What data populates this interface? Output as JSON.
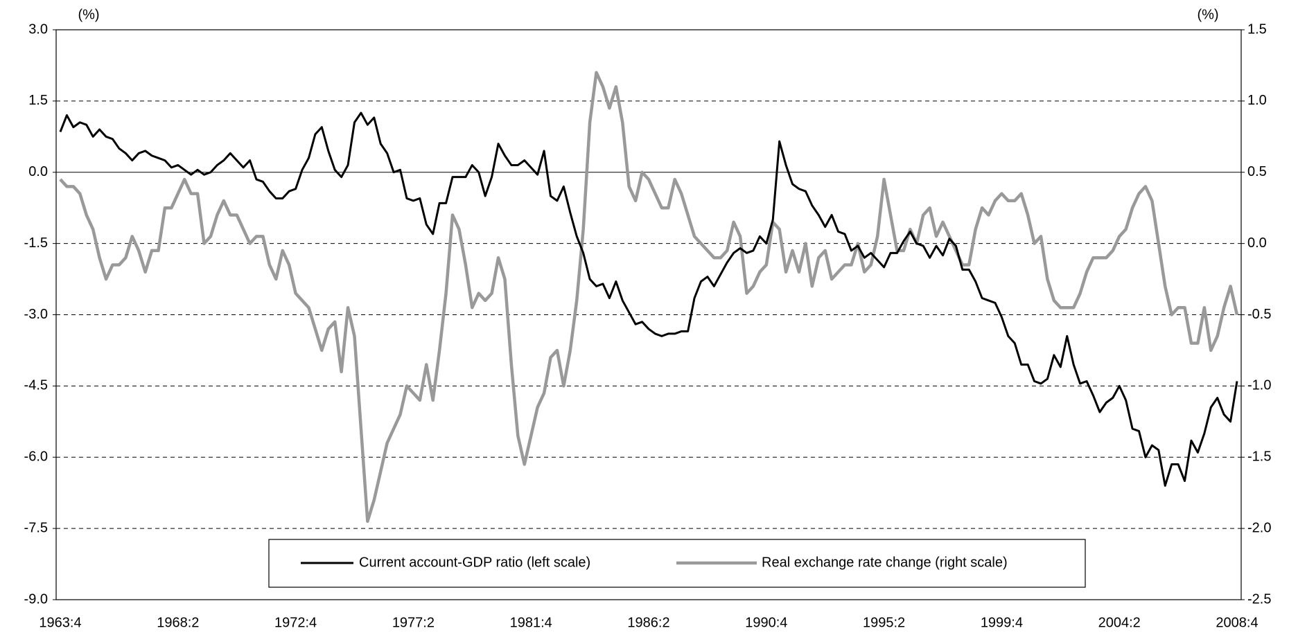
{
  "chart_data": {
    "type": "line",
    "y_label": "(%)",
    "y2_label": "(%)",
    "categories": [
      "1963:4",
      null,
      null,
      null,
      null,
      null,
      null,
      null,
      null,
      null,
      null,
      null,
      null,
      null,
      null,
      null,
      null,
      null,
      "1968:2",
      null,
      null,
      null,
      null,
      null,
      null,
      null,
      null,
      null,
      null,
      null,
      null,
      null,
      null,
      null,
      null,
      null,
      "1972:4",
      null,
      null,
      null,
      null,
      null,
      null,
      null,
      null,
      null,
      null,
      null,
      null,
      null,
      null,
      null,
      null,
      null,
      "1977:2",
      null,
      null,
      null,
      null,
      null,
      null,
      null,
      null,
      null,
      null,
      null,
      null,
      null,
      null,
      null,
      null,
      null,
      "1981:4",
      null,
      null,
      null,
      null,
      null,
      null,
      null,
      null,
      null,
      null,
      null,
      null,
      null,
      null,
      null,
      null,
      null,
      "1986:2",
      null,
      null,
      null,
      null,
      null,
      null,
      null,
      null,
      null,
      null,
      null,
      null,
      null,
      null,
      null,
      null,
      null,
      "1990:4",
      null,
      null,
      null,
      null,
      null,
      null,
      null,
      null,
      null,
      null,
      null,
      null,
      null,
      null,
      null,
      null,
      null,
      "1995:2",
      null,
      null,
      null,
      null,
      null,
      null,
      null,
      null,
      null,
      null,
      null,
      null,
      null,
      null,
      null,
      null,
      null,
      "1999:4",
      null,
      null,
      null,
      null,
      null,
      null,
      null,
      null,
      null,
      null,
      null,
      null,
      null,
      null,
      null,
      null,
      null,
      "2004:2",
      null,
      null,
      null,
      null,
      null,
      null,
      null,
      null,
      null,
      null,
      null,
      null,
      null,
      null,
      null,
      null,
      null,
      "2008:4"
    ],
    "series": [
      {
        "name": "Current account-GDP ratio (left scale)",
        "color": "#000000",
        "width": 3,
        "values": [
          0.85,
          1.2,
          0.95,
          1.05,
          1.0,
          0.75,
          0.9,
          0.75,
          0.7,
          0.5,
          0.4,
          0.25,
          0.4,
          0.45,
          0.35,
          0.3,
          0.25,
          0.1,
          0.15,
          0.05,
          -0.05,
          0.05,
          -0.05,
          0.0,
          0.15,
          0.25,
          0.4,
          0.25,
          0.1,
          0.25,
          -0.15,
          -0.2,
          -0.4,
          -0.55,
          -0.55,
          -0.4,
          -0.35,
          0.05,
          0.3,
          0.8,
          0.95,
          0.45,
          0.05,
          -0.1,
          0.15,
          1.05,
          1.25,
          1.0,
          1.15,
          0.6,
          0.4,
          0.0,
          0.05,
          -0.55,
          -0.6,
          -0.55,
          -1.1,
          -1.3,
          -0.65,
          -0.65,
          -0.1,
          -0.1,
          -0.1,
          0.15,
          0.0,
          -0.5,
          -0.1,
          0.6,
          0.35,
          0.15,
          0.15,
          0.25,
          0.1,
          -0.05,
          0.45,
          -0.5,
          -0.6,
          -0.3,
          -0.85,
          -1.35,
          -1.7,
          -2.25,
          -2.4,
          -2.35,
          -2.65,
          -2.3,
          -2.7,
          -2.95,
          -3.2,
          -3.15,
          -3.3,
          -3.4,
          -3.45,
          -3.4,
          -3.4,
          -3.35,
          -3.35,
          -2.65,
          -2.3,
          -2.2,
          -2.4,
          -2.15,
          -1.9,
          -1.7,
          -1.6,
          -1.7,
          -1.65,
          -1.35,
          -1.5,
          -1.0,
          0.65,
          0.15,
          -0.25,
          -0.35,
          -0.4,
          -0.7,
          -0.9,
          -1.15,
          -0.9,
          -1.25,
          -1.3,
          -1.65,
          -1.55,
          -1.8,
          -1.7,
          -1.85,
          -2.0,
          -1.7,
          -1.7,
          -1.45,
          -1.25,
          -1.5,
          -1.55,
          -1.8,
          -1.55,
          -1.75,
          -1.4,
          -1.55,
          -2.05,
          -2.05,
          -2.3,
          -2.65,
          -2.7,
          -2.75,
          -3.05,
          -3.45,
          -3.6,
          -4.05,
          -4.05,
          -4.4,
          -4.45,
          -4.35,
          -3.85,
          -4.1,
          -3.45,
          -4.05,
          -4.45,
          -4.4,
          -4.7,
          -5.05,
          -4.85,
          -4.75,
          -4.5,
          -4.8,
          -5.4,
          -5.45,
          -6.0,
          -5.75,
          -5.85,
          -6.6,
          -6.15,
          -6.15,
          -6.5,
          -5.65,
          -5.9,
          -5.5,
          -4.95,
          -4.75,
          -5.1,
          -5.25,
          -4.4
        ]
      },
      {
        "name": "Real exchange rate change (right scale)",
        "color": "#999999",
        "width": 4.5,
        "axis": "y2",
        "values": [
          0.45,
          0.4,
          0.4,
          0.35,
          0.2,
          0.1,
          -0.1,
          -0.25,
          -0.15,
          -0.15,
          -0.1,
          0.05,
          -0.05,
          -0.2,
          -0.05,
          -0.05,
          0.25,
          0.25,
          0.35,
          0.45,
          0.35,
          0.35,
          0.0,
          0.05,
          0.2,
          0.3,
          0.2,
          0.2,
          0.1,
          0.0,
          0.05,
          0.05,
          -0.15,
          -0.25,
          -0.05,
          -0.15,
          -0.35,
          -0.4,
          -0.45,
          -0.6,
          -0.75,
          -0.6,
          -0.55,
          -0.9,
          -0.45,
          -0.65,
          -1.3,
          -1.95,
          -1.8,
          -1.6,
          -1.4,
          -1.3,
          -1.2,
          -1.0,
          -1.05,
          -1.1,
          -0.85,
          -1.1,
          -0.75,
          -0.35,
          0.2,
          0.1,
          -0.15,
          -0.45,
          -0.35,
          -0.4,
          -0.35,
          -0.1,
          -0.25,
          -0.85,
          -1.35,
          -1.55,
          -1.35,
          -1.15,
          -1.05,
          -0.8,
          -0.75,
          -1.0,
          -0.75,
          -0.4,
          0.1,
          0.85,
          1.2,
          1.1,
          0.95,
          1.1,
          0.85,
          0.4,
          0.3,
          0.5,
          0.45,
          0.35,
          0.25,
          0.25,
          0.45,
          0.35,
          0.2,
          0.05,
          0.0,
          -0.05,
          -0.1,
          -0.1,
          -0.05,
          0.15,
          0.05,
          -0.35,
          -0.3,
          -0.2,
          -0.15,
          0.15,
          0.1,
          -0.2,
          -0.05,
          -0.2,
          0.0,
          -0.3,
          -0.1,
          -0.05,
          -0.25,
          -0.2,
          -0.15,
          -0.15,
          0.0,
          -0.2,
          -0.15,
          0.05,
          0.45,
          0.2,
          -0.05,
          -0.05,
          0.1,
          0.0,
          0.2,
          0.25,
          0.05,
          0.15,
          0.05,
          -0.05,
          -0.15,
          -0.15,
          0.1,
          0.25,
          0.2,
          0.3,
          0.35,
          0.3,
          0.3,
          0.35,
          0.2,
          0.0,
          0.05,
          -0.25,
          -0.4,
          -0.45,
          -0.45,
          -0.45,
          -0.35,
          -0.2,
          -0.1,
          -0.1,
          -0.1,
          -0.05,
          0.05,
          0.1,
          0.25,
          0.35,
          0.4,
          0.3,
          0.0,
          -0.3,
          -0.5,
          -0.45,
          -0.45,
          -0.7,
          -0.7,
          -0.45,
          -0.75,
          -0.65,
          -0.45,
          -0.3,
          -0.5
        ]
      }
    ],
    "ylim": [
      -9,
      3
    ],
    "yticks": [
      {
        "value": -9,
        "label": "-9.0"
      },
      -7.5,
      {
        "value": -6,
        "label": "-6.0"
      },
      -4.5,
      {
        "value": -3,
        "label": "-3.0"
      },
      -1.5,
      {
        "value": 0,
        "label": "0.0"
      },
      1.5,
      {
        "value": 3,
        "label": "3.0"
      }
    ],
    "y2lim": [
      -2.5,
      1.5
    ],
    "y2ticks": [
      -2.5,
      {
        "value": -2,
        "label": "-2.0"
      },
      -1.5,
      {
        "value": -1,
        "label": "-1.0"
      },
      -0.5,
      {
        "value": 0,
        "label": "0.0"
      },
      0.5,
      {
        "value": 1,
        "label": "1.0"
      },
      1.5
    ],
    "grid": true,
    "legend": "bottom"
  }
}
